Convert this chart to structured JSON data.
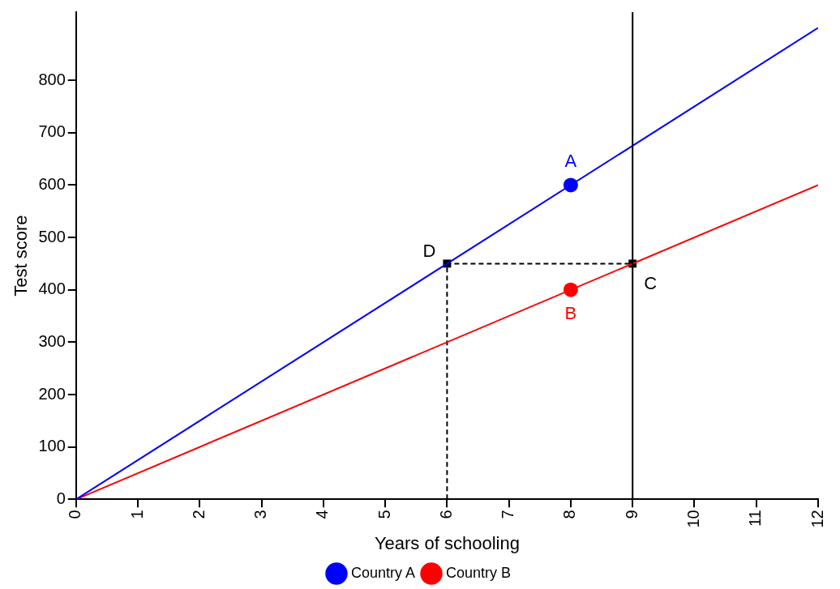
{
  "chart_data": {
    "type": "line",
    "xlabel": "Years of schooling",
    "ylabel": "Test score",
    "xlim": [
      0,
      12
    ],
    "ylim": [
      0,
      930
    ],
    "xticks": [
      0,
      1,
      2,
      3,
      4,
      5,
      6,
      7,
      8,
      9,
      10,
      11,
      12
    ],
    "yticks": [
      0,
      100,
      200,
      300,
      400,
      500,
      600,
      700,
      800
    ],
    "legend": "bottom",
    "series": [
      {
        "name": "Country A",
        "type": "line",
        "color": "#0000ff",
        "x": [
          0,
          12
        ],
        "values": [
          0,
          900
        ],
        "marker": "none",
        "line_style": "solid"
      },
      {
        "name": "Country B",
        "type": "line",
        "color": "#ff0000",
        "x": [
          0,
          12
        ],
        "values": [
          0,
          600
        ],
        "marker": "none",
        "line_style": "solid"
      },
      {
        "type": "line",
        "color": "#000000",
        "x": [
          6,
          6,
          9
        ],
        "values": [
          0,
          450,
          450
        ],
        "marker": "none",
        "line_style": "dashed"
      },
      {
        "type": "scatter",
        "color": "#0000ff",
        "x": [
          8
        ],
        "values": [
          600
        ],
        "marker": "circle"
      },
      {
        "type": "scatter",
        "color": "#ff0000",
        "x": [
          8
        ],
        "values": [
          400
        ],
        "marker": "circle"
      },
      {
        "type": "scatter",
        "color": "#000000",
        "x": [
          6,
          9
        ],
        "values": [
          450,
          450
        ],
        "marker": "square"
      }
    ],
    "ref_lines": [
      {
        "axis": "x",
        "value": 9,
        "color": "#000000",
        "line_style": "solid"
      }
    ],
    "annotations": [
      {
        "text": "A",
        "x": 8,
        "y": 600
      },
      {
        "text": "B",
        "x": 8,
        "y": 400
      },
      {
        "text": "C",
        "x": 9,
        "y": 450
      },
      {
        "text": "D",
        "x": 6,
        "y": 450
      }
    ]
  }
}
